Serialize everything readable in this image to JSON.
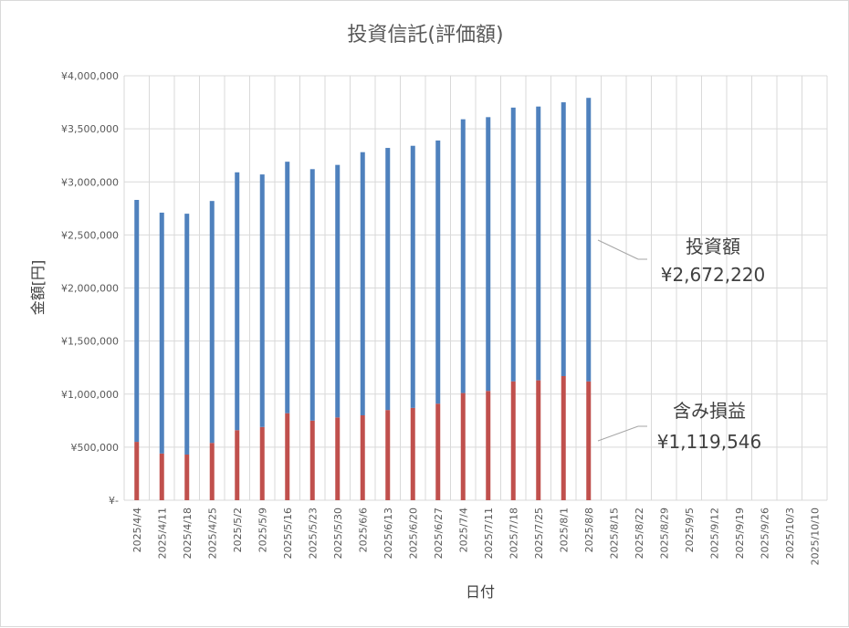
{
  "chart_data": {
    "type": "bar",
    "stacked": true,
    "title": "投資信託(評価額)",
    "xlabel": "日付",
    "ylabel": "金額[円]",
    "ylim": [
      0,
      4000000
    ],
    "yticks": [
      "¥-",
      "¥500,000",
      "¥1,000,000",
      "¥1,500,000",
      "¥2,000,000",
      "¥2,500,000",
      "¥3,000,000",
      "¥3,500,000",
      "¥4,000,000"
    ],
    "grid": true,
    "categories": [
      "2025/4/4",
      "2025/4/11",
      "2025/4/18",
      "2025/4/25",
      "2025/5/2",
      "2025/5/9",
      "2025/5/16",
      "2025/5/23",
      "2025/5/30",
      "2025/6/6",
      "2025/6/13",
      "2025/6/20",
      "2025/6/27",
      "2025/7/4",
      "2025/7/11",
      "2025/7/18",
      "2025/7/25",
      "2025/8/1",
      "2025/8/8",
      "2025/8/15",
      "2025/8/22",
      "2025/8/29",
      "2025/9/5",
      "2025/9/12",
      "2025/9/19",
      "2025/9/26",
      "2025/10/3",
      "2025/10/10"
    ],
    "series": [
      {
        "name": "含み損益",
        "color": "#c0504d",
        "values": [
          550000,
          440000,
          430000,
          540000,
          660000,
          690000,
          820000,
          750000,
          780000,
          800000,
          850000,
          870000,
          910000,
          1010000,
          1030000,
          1120000,
          1130000,
          1170000,
          1119546,
          null,
          null,
          null,
          null,
          null,
          null,
          null,
          null,
          null
        ]
      },
      {
        "name": "投資額",
        "color": "#4f81bd",
        "values": [
          2280000,
          2270000,
          2270000,
          2280000,
          2430000,
          2380000,
          2370000,
          2370000,
          2380000,
          2480000,
          2470000,
          2470000,
          2480000,
          2580000,
          2580000,
          2580000,
          2580000,
          2580000,
          2672220,
          null,
          null,
          null,
          null,
          null,
          null,
          null,
          null,
          null
        ]
      }
    ],
    "annotations": [
      {
        "label": "投資額",
        "value": "¥2,672,220"
      },
      {
        "label": "含み損益",
        "value": "¥1,119,546"
      }
    ]
  }
}
